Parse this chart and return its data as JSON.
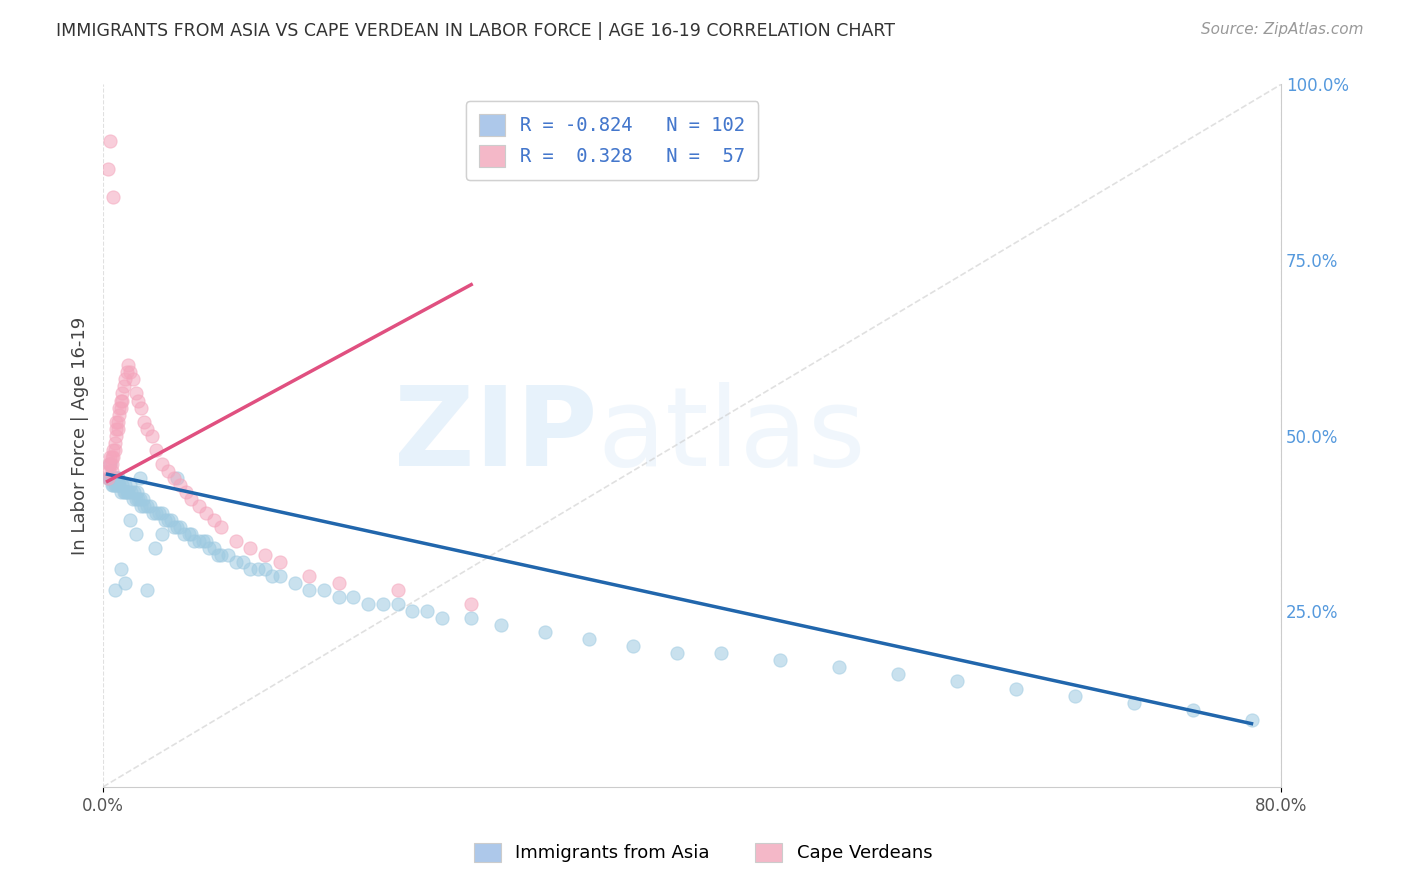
{
  "title": "IMMIGRANTS FROM ASIA VS CAPE VERDEAN IN LABOR FORCE | AGE 16-19 CORRELATION CHART",
  "source": "Source: ZipAtlas.com",
  "ylabel": "In Labor Force | Age 16-19",
  "xlim": [
    0.0,
    0.8
  ],
  "ylim": [
    0.0,
    1.0
  ],
  "blue_color": "#9ecae1",
  "pink_color": "#f4a5bc",
  "blue_line_color": "#2166ac",
  "pink_line_color": "#e05080",
  "diagonal_color": "#cccccc",
  "background_color": "#ffffff",
  "grid_color": "#dddddd",
  "title_color": "#333333",
  "source_color": "#999999",
  "right_axis_color": "#5599dd",
  "legend_patch_blue": "#adc8ea",
  "legend_patch_pink": "#f4b8c8",
  "legend_bottom_colors": [
    "#adc8ea",
    "#f4b8c8"
  ],
  "legend_bottom": [
    "Immigrants from Asia",
    "Cape Verdeans"
  ],
  "blue_scatter_x": [
    0.003,
    0.004,
    0.005,
    0.006,
    0.006,
    0.007,
    0.007,
    0.008,
    0.008,
    0.009,
    0.009,
    0.01,
    0.01,
    0.011,
    0.012,
    0.013,
    0.014,
    0.015,
    0.015,
    0.016,
    0.017,
    0.018,
    0.019,
    0.02,
    0.021,
    0.022,
    0.023,
    0.024,
    0.025,
    0.026,
    0.027,
    0.028,
    0.03,
    0.032,
    0.034,
    0.036,
    0.038,
    0.04,
    0.042,
    0.044,
    0.046,
    0.048,
    0.05,
    0.052,
    0.055,
    0.058,
    0.06,
    0.062,
    0.065,
    0.068,
    0.07,
    0.072,
    0.075,
    0.078,
    0.08,
    0.085,
    0.09,
    0.095,
    0.1,
    0.105,
    0.11,
    0.115,
    0.12,
    0.13,
    0.14,
    0.15,
    0.16,
    0.17,
    0.18,
    0.19,
    0.2,
    0.21,
    0.22,
    0.23,
    0.25,
    0.27,
    0.3,
    0.33,
    0.36,
    0.39,
    0.42,
    0.46,
    0.5,
    0.54,
    0.58,
    0.62,
    0.66,
    0.7,
    0.74,
    0.78,
    0.005,
    0.008,
    0.01,
    0.012,
    0.015,
    0.018,
    0.022,
    0.025,
    0.03,
    0.035,
    0.04,
    0.05
  ],
  "blue_scatter_y": [
    0.44,
    0.44,
    0.44,
    0.43,
    0.44,
    0.43,
    0.44,
    0.43,
    0.44,
    0.43,
    0.44,
    0.43,
    0.44,
    0.43,
    0.42,
    0.43,
    0.42,
    0.43,
    0.42,
    0.42,
    0.42,
    0.43,
    0.42,
    0.41,
    0.42,
    0.41,
    0.42,
    0.41,
    0.41,
    0.4,
    0.41,
    0.4,
    0.4,
    0.4,
    0.39,
    0.39,
    0.39,
    0.39,
    0.38,
    0.38,
    0.38,
    0.37,
    0.37,
    0.37,
    0.36,
    0.36,
    0.36,
    0.35,
    0.35,
    0.35,
    0.35,
    0.34,
    0.34,
    0.33,
    0.33,
    0.33,
    0.32,
    0.32,
    0.31,
    0.31,
    0.31,
    0.3,
    0.3,
    0.29,
    0.28,
    0.28,
    0.27,
    0.27,
    0.26,
    0.26,
    0.26,
    0.25,
    0.25,
    0.24,
    0.24,
    0.23,
    0.22,
    0.21,
    0.2,
    0.19,
    0.19,
    0.18,
    0.17,
    0.16,
    0.15,
    0.14,
    0.13,
    0.12,
    0.11,
    0.095,
    0.46,
    0.28,
    0.44,
    0.31,
    0.29,
    0.38,
    0.36,
    0.44,
    0.28,
    0.34,
    0.36,
    0.44
  ],
  "pink_scatter_x": [
    0.003,
    0.004,
    0.004,
    0.005,
    0.005,
    0.006,
    0.006,
    0.006,
    0.007,
    0.007,
    0.008,
    0.008,
    0.009,
    0.009,
    0.009,
    0.01,
    0.01,
    0.011,
    0.011,
    0.012,
    0.012,
    0.013,
    0.013,
    0.014,
    0.015,
    0.016,
    0.017,
    0.018,
    0.02,
    0.022,
    0.024,
    0.026,
    0.028,
    0.03,
    0.033,
    0.036,
    0.04,
    0.044,
    0.048,
    0.052,
    0.056,
    0.06,
    0.065,
    0.07,
    0.075,
    0.08,
    0.09,
    0.1,
    0.11,
    0.12,
    0.14,
    0.16,
    0.2,
    0.25,
    0.003,
    0.005,
    0.007
  ],
  "pink_scatter_y": [
    0.44,
    0.45,
    0.46,
    0.47,
    0.46,
    0.47,
    0.46,
    0.45,
    0.48,
    0.47,
    0.49,
    0.48,
    0.51,
    0.5,
    0.52,
    0.51,
    0.52,
    0.54,
    0.53,
    0.55,
    0.54,
    0.56,
    0.55,
    0.57,
    0.58,
    0.59,
    0.6,
    0.59,
    0.58,
    0.56,
    0.55,
    0.54,
    0.52,
    0.51,
    0.5,
    0.48,
    0.46,
    0.45,
    0.44,
    0.43,
    0.42,
    0.41,
    0.4,
    0.39,
    0.38,
    0.37,
    0.35,
    0.34,
    0.33,
    0.32,
    0.3,
    0.29,
    0.28,
    0.26,
    0.88,
    0.92,
    0.84
  ],
  "blue_line_x": [
    0.003,
    0.78
  ],
  "blue_line_y_start": 0.445,
  "blue_line_y_end": 0.09,
  "pink_line_x": [
    0.003,
    0.25
  ],
  "pink_line_y_start": 0.435,
  "pink_line_y_end": 0.715
}
